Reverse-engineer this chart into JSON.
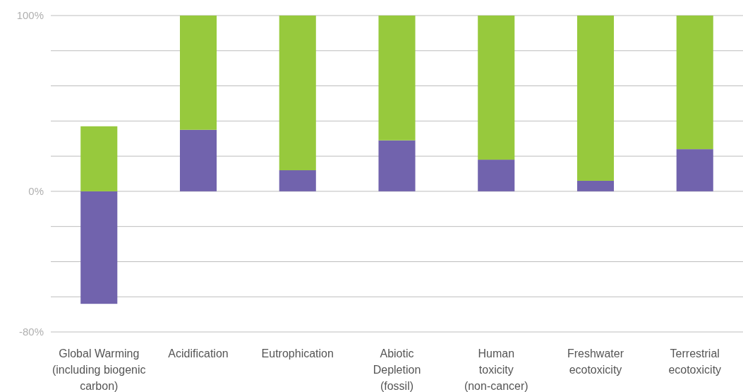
{
  "chart_data": {
    "type": "bar",
    "stacked": true,
    "categories": [
      "Global Warming\n(including biogenic\ncarbon)",
      "Acidification",
      "Eutrophication",
      "Abiotic\nDepletion\n(fossil)",
      "Human\ntoxicity\n(non-cancer)",
      "Freshwater\necotoxicity",
      "Terrestrial\necotoxicity"
    ],
    "series": [
      {
        "color": "#7163ad",
        "values": [
          -64,
          35,
          12,
          29,
          18,
          6,
          24
        ]
      },
      {
        "color": "#97c93d",
        "values": [
          37,
          65,
          88,
          71,
          82,
          94,
          76
        ]
      }
    ],
    "ylim": [
      -80,
      100
    ],
    "yticks": [
      {
        "value": -80,
        "label": "-80%"
      },
      {
        "value": -60,
        "label": null
      },
      {
        "value": -40,
        "label": null
      },
      {
        "value": -20,
        "label": null
      },
      {
        "value": 0,
        "label": "0%"
      },
      {
        "value": 20,
        "label": null
      },
      {
        "value": 40,
        "label": null
      },
      {
        "value": 60,
        "label": null
      },
      {
        "value": 80,
        "label": null
      },
      {
        "value": 100,
        "label": "100%"
      }
    ],
    "grid": "y"
  }
}
